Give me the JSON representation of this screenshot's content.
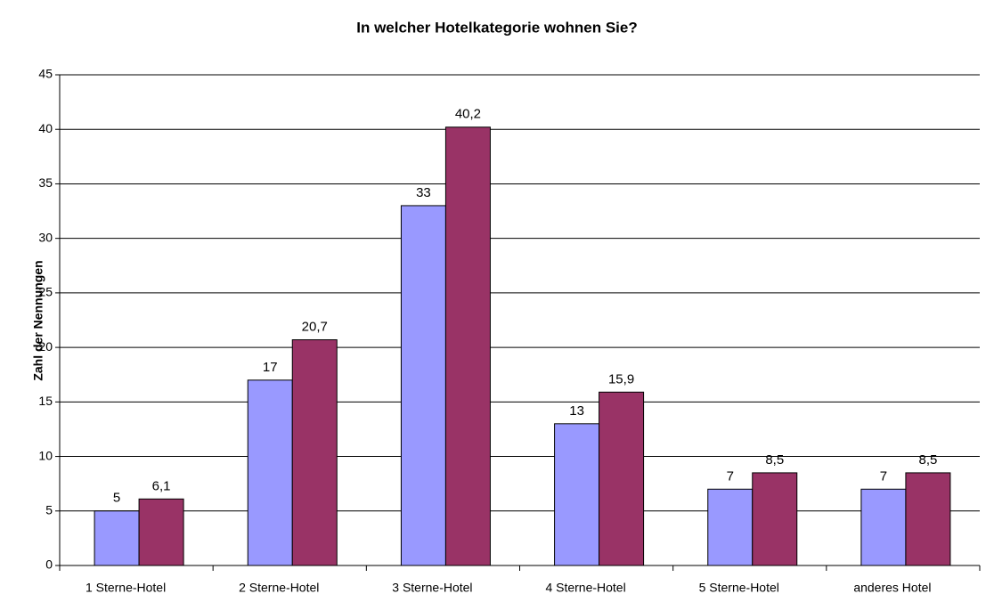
{
  "chart_data": {
    "type": "bar",
    "title": "In welcher Hotelkategorie wohnen Sie?",
    "y_label": "Zahl der Nennungen",
    "categories": [
      "1 Sterne-Hotel",
      "2 Sterne-Hotel",
      "3 Sterne-Hotel",
      "4 Sterne-Hotel",
      "5 Sterne-Hotel",
      "anderes Hotel"
    ],
    "series": [
      {
        "color": "#9999ff",
        "values": [
          5,
          17,
          33,
          13,
          7,
          7
        ]
      },
      {
        "color": "#993366",
        "values": [
          6.1,
          20.7,
          40.2,
          15.9,
          8.5,
          8.5
        ],
        "value_labels": [
          "6,1",
          "20,7",
          "40,2",
          "15,9",
          "8,5",
          "8,5"
        ]
      }
    ],
    "ylim": [
      0,
      45
    ],
    "yticks": [
      0,
      5,
      10,
      15,
      20,
      25,
      30,
      35,
      40,
      45
    ],
    "grid": true
  }
}
